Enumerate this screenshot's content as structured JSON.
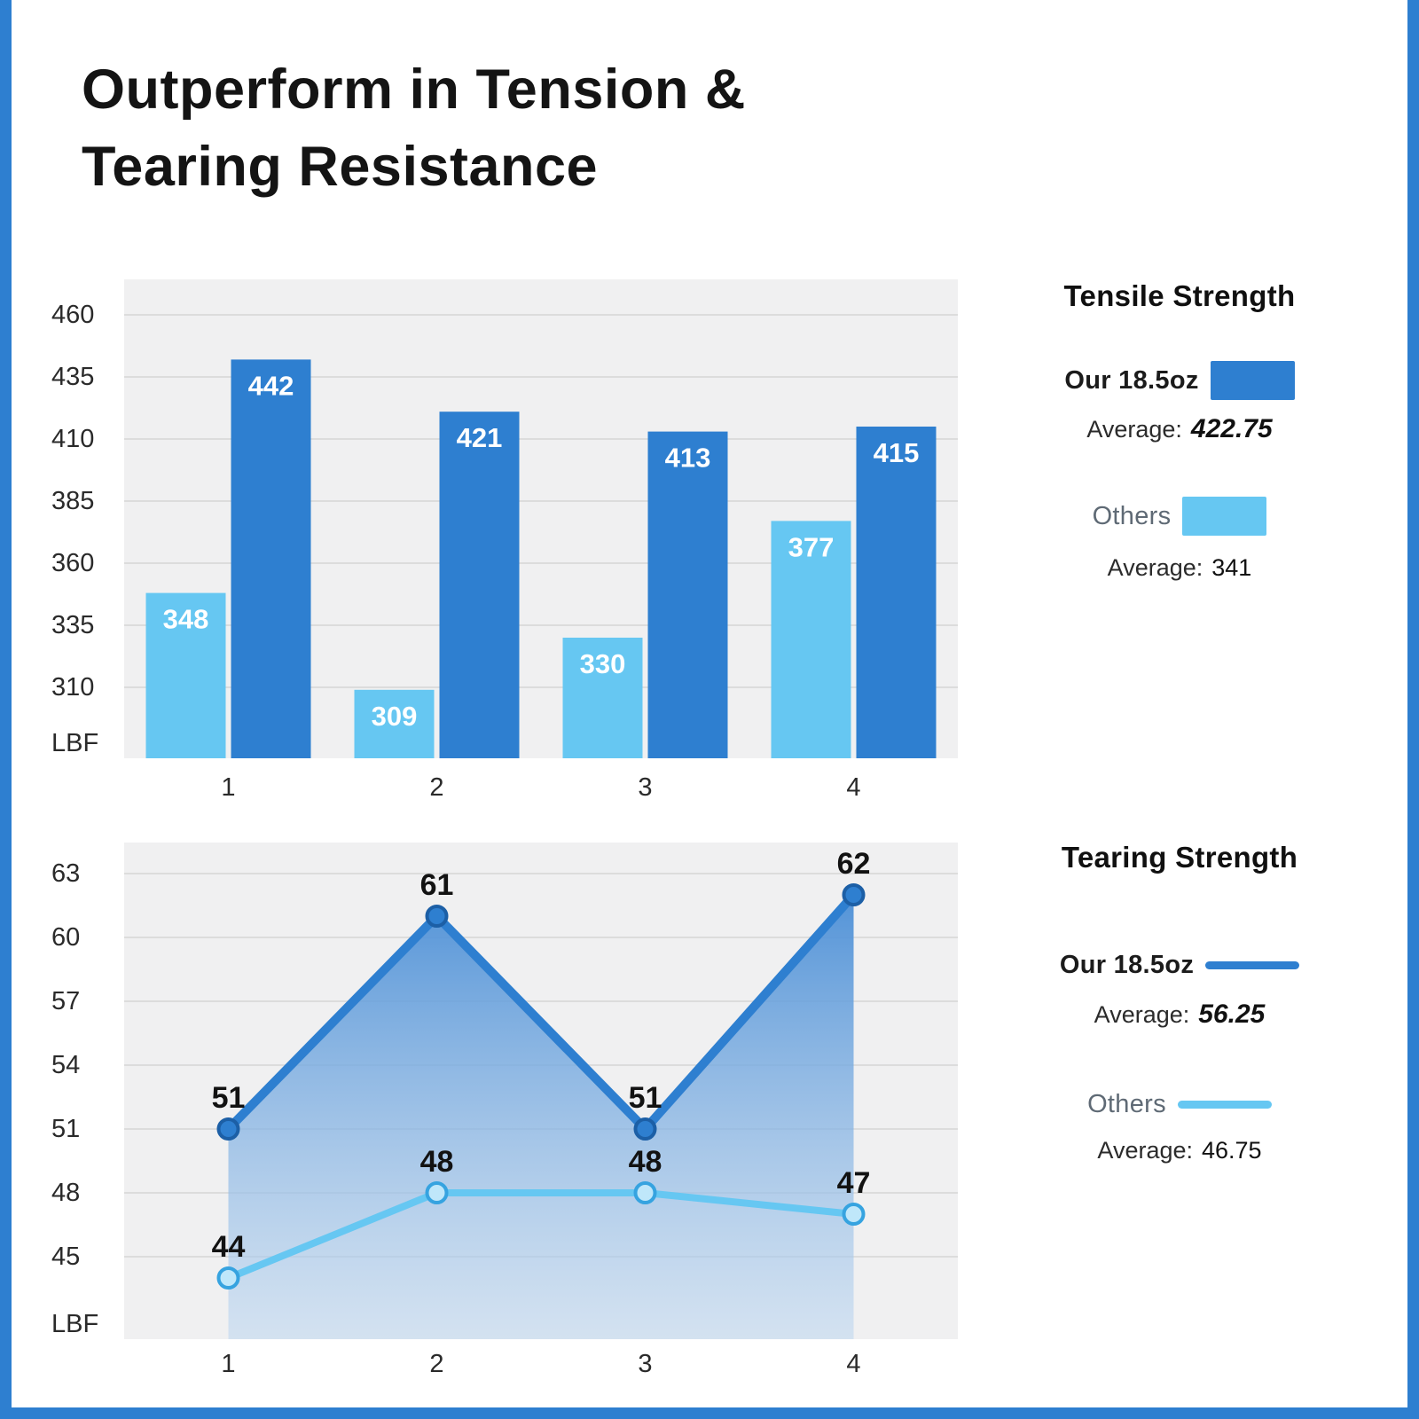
{
  "title": {
    "line1": "Outperform in Tension &",
    "line2": "Tearing Resistance"
  },
  "colors": {
    "our": "#2e7fd0",
    "others": "#66c7f2",
    "plot_background": "#f0f0f1",
    "gridline": "#dcdcdc",
    "frame": "#2e7fd0"
  },
  "legends": {
    "tensile": {
      "title": "Tensile Strength",
      "our_name": "Our 18.5oz",
      "avg_label": "Average:",
      "our_avg": "422.75",
      "others_name": "Others",
      "others_avg": "341"
    },
    "tearing": {
      "title": "Tearing Strength",
      "our_name": "Our 18.5oz",
      "avg_label": "Average:",
      "our_avg": "56.25",
      "others_name": "Others",
      "others_avg": "46.75"
    }
  },
  "chart_data": [
    {
      "type": "bar",
      "title": "Tensile Strength",
      "categories": [
        "1",
        "2",
        "3",
        "4"
      ],
      "series": [
        {
          "name": "Others",
          "color": "#66c7f2",
          "values": [
            348,
            309,
            330,
            377
          ],
          "average": 341
        },
        {
          "name": "Our 18.5oz",
          "color": "#2e7fd0",
          "values": [
            442,
            421,
            413,
            415
          ],
          "average": 422.75
        }
      ],
      "ylabel": "LBF",
      "yticks": [
        460,
        435,
        410,
        385,
        360,
        335,
        310
      ],
      "ylim": [
        285,
        470
      ],
      "grid": true,
      "legend_position": "right"
    },
    {
      "type": "line",
      "title": "Tearing Strength",
      "categories": [
        "1",
        "2",
        "3",
        "4"
      ],
      "series": [
        {
          "name": "Our 18.5oz",
          "color": "#2e7fd0",
          "values": [
            51,
            61,
            51,
            62
          ],
          "average": 56.25
        },
        {
          "name": "Others",
          "color": "#66c7f2",
          "values": [
            44,
            48,
            48,
            47
          ],
          "average": 46.75
        }
      ],
      "ylabel": "LBF",
      "yticks": [
        63,
        60,
        57,
        54,
        51,
        48,
        45
      ],
      "ylim": [
        41,
        64.5
      ],
      "grid": true,
      "area_fill": true,
      "legend_position": "right"
    }
  ]
}
